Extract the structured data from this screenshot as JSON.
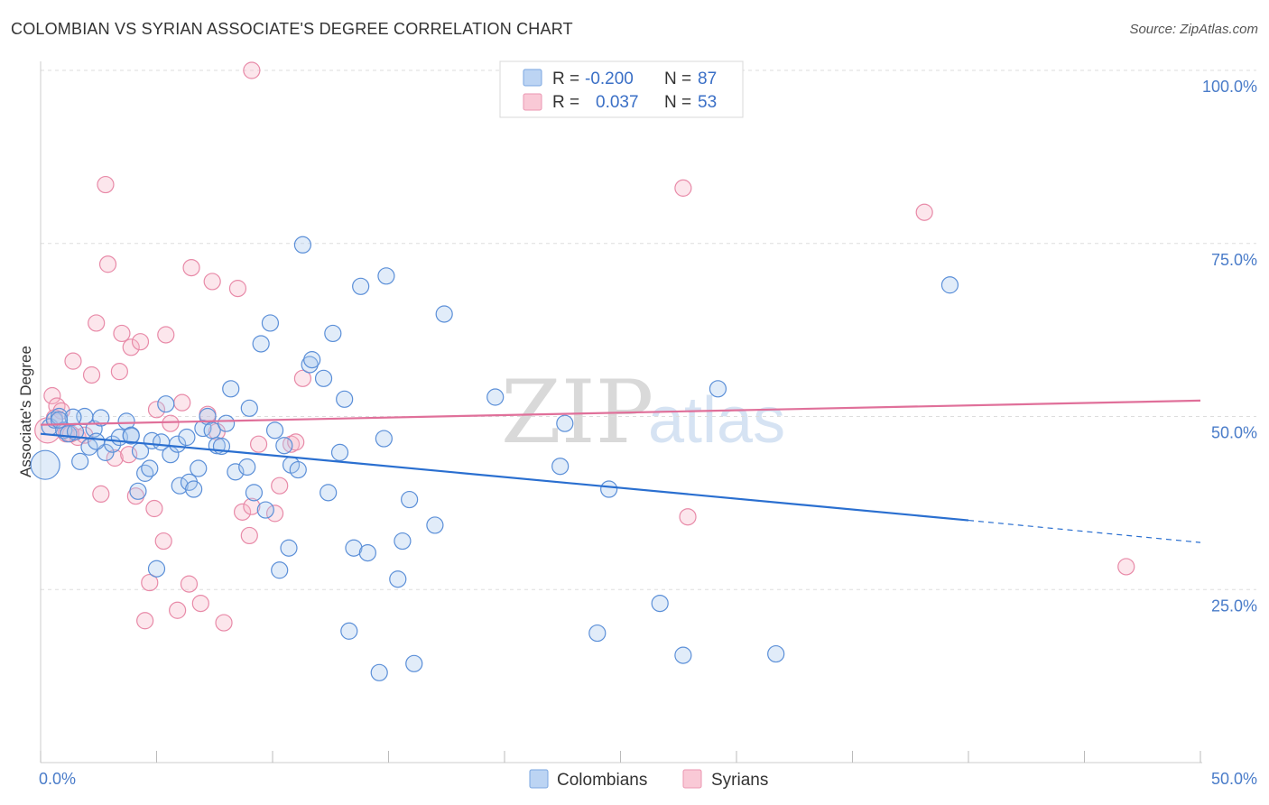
{
  "header": {
    "title": "COLOMBIAN VS SYRIAN ASSOCIATE'S DEGREE CORRELATION CHART",
    "source": "Source: ZipAtlas.com"
  },
  "watermark": {
    "zip": "ZIP",
    "atlas": "atlas"
  },
  "legend": {
    "rows": [
      {
        "r_label": "R =",
        "r_value": "-0.200",
        "n_label": "N =",
        "n_value": "87",
        "color": "#a9c8ef"
      },
      {
        "r_label": "R =",
        "r_value": "0.037",
        "n_label": "N =",
        "n_value": "53",
        "color": "#f6b6c9"
      }
    ]
  },
  "bottom_legend": [
    "Colombians",
    "Syrians"
  ],
  "chart_data": {
    "type": "scatter",
    "title": "COLOMBIAN VS SYRIAN ASSOCIATE'S DEGREE CORRELATION CHART",
    "xlabel": "",
    "ylabel": "Associate's Degree",
    "xlim": [
      0,
      50
    ],
    "ylim": [
      0,
      100
    ],
    "x_tick_labels": [
      "0.0%",
      "50.0%"
    ],
    "y_tick_labels": [
      "100.0%",
      "75.0%",
      "50.0%",
      "25.0%"
    ],
    "y_tick_values": [
      100,
      75,
      50,
      25
    ],
    "grid": true,
    "colors": {
      "colombians": "#5b8fd8",
      "syrians": "#e88aa8",
      "colombians_line": "#2a6fd0",
      "syrians_line": "#e0709a"
    },
    "series": [
      {
        "name": "Colombians",
        "R": -0.2,
        "N": 87,
        "trend": {
          "x0": 0,
          "y0": 47.5,
          "x1": 40,
          "y1": 35.0,
          "dash_to_x": 50,
          "dash_to_y": 31.8
        },
        "points": [
          [
            0.2,
            43.0,
            16
          ],
          [
            0.4,
            48.5,
            9
          ],
          [
            0.6,
            49.5,
            9
          ],
          [
            0.8,
            50.0,
            9
          ],
          [
            1.0,
            48.0,
            9
          ],
          [
            1.2,
            47.5,
            9
          ],
          [
            1.5,
            47.8,
            9
          ],
          [
            1.7,
            43.5,
            9
          ],
          [
            1.9,
            50.0,
            9
          ],
          [
            2.1,
            45.6,
            9
          ],
          [
            2.3,
            48.2,
            9
          ],
          [
            2.6,
            49.8,
            9
          ],
          [
            2.8,
            44.8,
            9
          ],
          [
            3.1,
            46.0,
            9
          ],
          [
            3.4,
            47.0,
            9
          ],
          [
            3.7,
            49.3,
            9
          ],
          [
            3.9,
            47.3,
            9
          ],
          [
            4.2,
            39.2,
            9
          ],
          [
            4.3,
            45.0,
            9
          ],
          [
            4.5,
            41.8,
            9
          ],
          [
            4.7,
            42.5,
            9
          ],
          [
            4.8,
            46.5,
            9
          ],
          [
            5.0,
            28.0,
            9
          ],
          [
            5.2,
            46.3,
            9
          ],
          [
            5.4,
            51.8,
            9
          ],
          [
            5.6,
            44.5,
            9
          ],
          [
            5.9,
            46.0,
            9
          ],
          [
            6.0,
            40.0,
            9
          ],
          [
            6.3,
            47.0,
            9
          ],
          [
            6.4,
            40.5,
            9
          ],
          [
            6.6,
            39.5,
            9
          ],
          [
            6.8,
            42.5,
            9
          ],
          [
            7.0,
            48.3,
            9
          ],
          [
            7.2,
            50.0,
            9
          ],
          [
            7.4,
            48.0,
            9
          ],
          [
            7.6,
            45.8,
            9
          ],
          [
            7.8,
            45.7,
            9
          ],
          [
            8.0,
            49.0,
            9
          ],
          [
            8.2,
            54.0,
            9
          ],
          [
            8.4,
            42.0,
            9
          ],
          [
            8.9,
            42.7,
            9
          ],
          [
            9.0,
            51.2,
            9
          ],
          [
            9.2,
            39.0,
            9
          ],
          [
            9.5,
            60.5,
            9
          ],
          [
            9.7,
            36.5,
            9
          ],
          [
            9.9,
            63.5,
            9
          ],
          [
            10.1,
            48.0,
            9
          ],
          [
            10.3,
            27.8,
            9
          ],
          [
            10.5,
            45.8,
            9
          ],
          [
            10.7,
            31.0,
            9
          ],
          [
            10.8,
            43.0,
            9
          ],
          [
            11.1,
            42.3,
            9
          ],
          [
            11.3,
            74.8,
            9
          ],
          [
            11.6,
            57.5,
            9
          ],
          [
            11.7,
            58.2,
            9
          ],
          [
            12.2,
            55.5,
            9
          ],
          [
            12.4,
            39.0,
            9
          ],
          [
            12.6,
            62.0,
            9
          ],
          [
            12.9,
            44.8,
            9
          ],
          [
            13.1,
            52.5,
            9
          ],
          [
            13.3,
            19.0,
            9
          ],
          [
            13.5,
            31.0,
            9
          ],
          [
            13.8,
            68.8,
            9
          ],
          [
            14.1,
            30.3,
            9
          ],
          [
            14.6,
            13.0,
            9
          ],
          [
            14.8,
            46.8,
            9
          ],
          [
            14.9,
            70.3,
            9
          ],
          [
            15.4,
            26.5,
            9
          ],
          [
            15.6,
            32.0,
            9
          ],
          [
            15.9,
            38.0,
            9
          ],
          [
            16.1,
            14.3,
            9
          ],
          [
            17.0,
            34.3,
            9
          ],
          [
            17.4,
            64.8,
            9
          ],
          [
            19.6,
            52.8,
            9
          ],
          [
            22.4,
            42.8,
            9
          ],
          [
            22.6,
            49.0,
            9
          ],
          [
            24.0,
            18.7,
            9
          ],
          [
            24.5,
            39.5,
            9
          ],
          [
            26.7,
            23.0,
            9
          ],
          [
            27.7,
            15.5,
            9
          ],
          [
            29.2,
            54.0,
            9
          ],
          [
            31.7,
            15.7,
            9
          ],
          [
            39.2,
            69.0,
            9
          ],
          [
            3.9,
            47.2,
            9
          ],
          [
            2.4,
            46.4,
            9
          ],
          [
            1.4,
            49.9,
            9
          ],
          [
            0.8,
            49.5,
            9
          ]
        ]
      },
      {
        "name": "Syrians",
        "R": 0.037,
        "N": 53,
        "trend": {
          "x0": 0,
          "y0": 48.8,
          "x1": 50,
          "y1": 52.3
        },
        "points": [
          [
            0.3,
            48.0,
            14
          ],
          [
            0.5,
            53.0,
            9
          ],
          [
            0.7,
            51.5,
            9
          ],
          [
            0.9,
            50.8,
            9
          ],
          [
            1.1,
            47.5,
            9
          ],
          [
            1.4,
            58.0,
            9
          ],
          [
            1.6,
            47.0,
            9
          ],
          [
            1.9,
            47.3,
            9
          ],
          [
            2.2,
            56.0,
            9
          ],
          [
            2.4,
            63.5,
            9
          ],
          [
            2.6,
            38.8,
            9
          ],
          [
            2.8,
            83.5,
            9
          ],
          [
            2.9,
            72.0,
            9
          ],
          [
            3.2,
            44.0,
            9
          ],
          [
            3.4,
            56.5,
            9
          ],
          [
            3.5,
            62.0,
            9
          ],
          [
            3.8,
            44.5,
            9
          ],
          [
            3.9,
            60.0,
            9
          ],
          [
            4.1,
            38.5,
            9
          ],
          [
            4.3,
            60.8,
            9
          ],
          [
            4.5,
            20.5,
            9
          ],
          [
            4.7,
            26.0,
            9
          ],
          [
            4.9,
            36.7,
            9
          ],
          [
            5.0,
            51.0,
            9
          ],
          [
            5.3,
            32.0,
            9
          ],
          [
            5.4,
            61.8,
            9
          ],
          [
            5.6,
            49.0,
            9
          ],
          [
            5.9,
            22.0,
            9
          ],
          [
            6.1,
            52.0,
            9
          ],
          [
            6.4,
            25.8,
            9
          ],
          [
            6.5,
            71.5,
            9
          ],
          [
            6.9,
            23.0,
            9
          ],
          [
            7.2,
            50.3,
            9
          ],
          [
            7.4,
            69.5,
            9
          ],
          [
            7.6,
            47.8,
            9
          ],
          [
            7.9,
            20.2,
            9
          ],
          [
            8.5,
            68.5,
            9
          ],
          [
            8.7,
            36.2,
            9
          ],
          [
            9.0,
            32.8,
            9
          ],
          [
            9.1,
            37.0,
            9
          ],
          [
            9.4,
            46.0,
            9
          ],
          [
            10.1,
            36.0,
            9
          ],
          [
            10.3,
            40.0,
            9
          ],
          [
            10.8,
            46.0,
            9
          ],
          [
            11.0,
            46.3,
            9
          ],
          [
            11.3,
            55.5,
            9
          ],
          [
            9.1,
            100.0,
            9
          ],
          [
            27.7,
            83.0,
            9
          ],
          [
            27.9,
            35.5,
            9
          ],
          [
            38.1,
            79.5,
            9
          ],
          [
            46.8,
            28.3,
            9
          ],
          [
            1.3,
            47.5,
            9
          ],
          [
            0.6,
            49.8,
            9
          ]
        ]
      }
    ]
  }
}
